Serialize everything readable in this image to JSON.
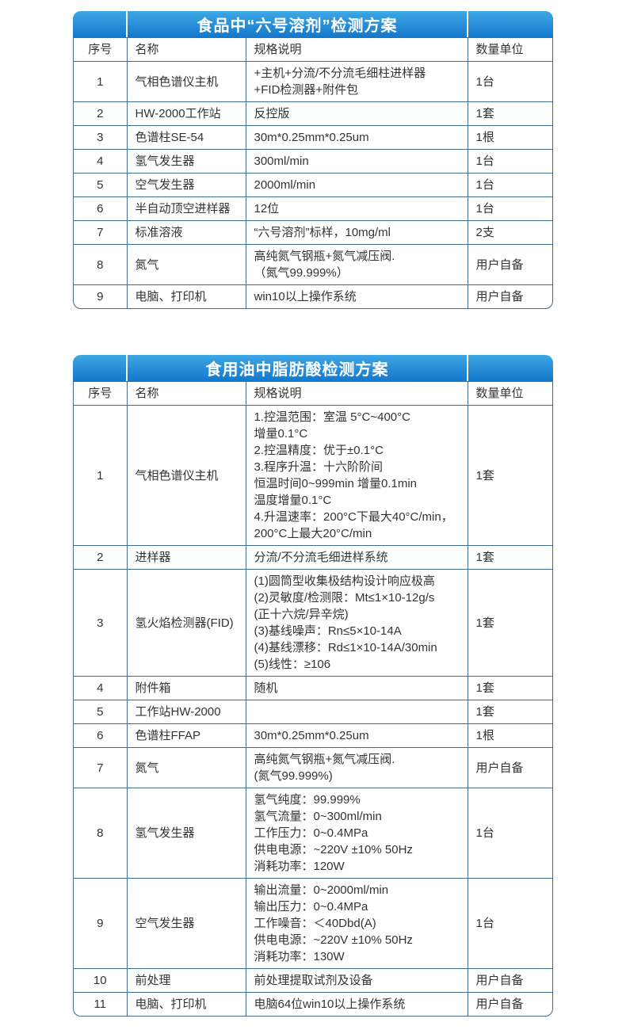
{
  "colors": {
    "header_gradient_top": "#3ea7e4",
    "header_gradient_bottom": "#1578cc",
    "table_border": "#3e6b8f",
    "body_text": "#333333",
    "title_text": "#ffffff",
    "page_background": "#ffffff"
  },
  "tables": [
    {
      "title": "食品中“六号溶剂”检测方案",
      "columns": [
        "序号",
        "名称",
        "规格说明",
        "数量单位"
      ],
      "rows": [
        {
          "no": "1",
          "name": "气相色谱仪主机",
          "spec": [
            "+主机+分流/不分流毛细柱进样器",
            "+FID检测器+附件包"
          ],
          "qty": "1台"
        },
        {
          "no": "2",
          "name": "HW-2000工作站",
          "spec": [
            "反控版"
          ],
          "qty": "1套"
        },
        {
          "no": "3",
          "name": "色谱柱SE-54",
          "spec": [
            "30m*0.25mm*0.25um"
          ],
          "qty": "1根"
        },
        {
          "no": "4",
          "name": "氢气发生器",
          "spec": [
            "300ml/min"
          ],
          "qty": "1台"
        },
        {
          "no": "5",
          "name": "空气发生器",
          "spec": [
            "2000ml/min"
          ],
          "qty": "1台"
        },
        {
          "no": "6",
          "name": "半自动顶空进样器",
          "spec": [
            "12位"
          ],
          "qty": "1台"
        },
        {
          "no": "7",
          "name": "标准溶液",
          "spec": [
            "“六号溶剂”标样，10mg/ml"
          ],
          "qty": "2支"
        },
        {
          "no": "8",
          "name": "氮气",
          "spec": [
            "高纯氮气钢瓶+氮气减压阀.",
            "（氮气99.999%）"
          ],
          "qty": "用户自备"
        },
        {
          "no": "9",
          "name": "电脑、打印机",
          "spec": [
            "win10以上操作系统"
          ],
          "qty": "用户自备"
        }
      ]
    },
    {
      "title": "食用油中脂肪酸检测方案",
      "columns": [
        "序号",
        "名称",
        "规格说明",
        "数量单位"
      ],
      "rows": [
        {
          "no": "1",
          "name": "气相色谱仪主机",
          "spec": [
            "1.控温范围：室温 5°C~400°C",
            "增量0.1°C",
            "2.控温精度：优于±0.1°C",
            "3.程序升温：十六阶阶间",
            "恒温时间0~999min 增量0.1min",
            "温度增量0.1°C",
            "4.升温速率：200°C下最大40°C/min，",
            "200°C上最大20°C/min"
          ],
          "qty": "1套"
        },
        {
          "no": "2",
          "name": "进样器",
          "spec": [
            "分流/不分流毛细进样系统"
          ],
          "qty": "1套"
        },
        {
          "no": "3",
          "name": "氢火焰检测器(FID)",
          "spec": [
            "(1)圆筒型收集极结构设计响应极高",
            "(2)灵敏度/检测限：Mt≤1×10-12g/s",
            "(正十六烷/异辛烷)",
            "(3)基线噪声：Rn≤5×10-14A",
            "(4)基线漂移：Rd≤1×10-14A/30min",
            "(5)线性：≥106"
          ],
          "qty": "1套"
        },
        {
          "no": "4",
          "name": "附件箱",
          "spec": [
            "随机"
          ],
          "qty": "1套"
        },
        {
          "no": "5",
          "name": "工作站HW-2000",
          "spec": [],
          "qty": "1套"
        },
        {
          "no": "6",
          "name": "色谱柱FFAP",
          "spec": [
            "30m*0.25mm*0.25um"
          ],
          "qty": "1根"
        },
        {
          "no": "7",
          "name": "氮气",
          "spec": [
            "高纯氮气钢瓶+氮气减压阀.",
            "(氮气99.999%)"
          ],
          "qty": "用户自备"
        },
        {
          "no": "8",
          "name": "氢气发生器",
          "spec": [
            "氢气纯度：99.999%",
            "氢气流量：0~300ml/min",
            "工作压力：0~0.4MPa",
            "供电电源：~220V ±10% 50Hz",
            "消耗功率：120W"
          ],
          "qty": "1台"
        },
        {
          "no": "9",
          "name": "空气发生器",
          "spec": [
            "输出流量：0~2000ml/min",
            "输出压力：0~0.4MPa",
            "工作噪音：＜40Dbd(A)",
            "供电电源：~220V ±10% 50Hz",
            "消耗功率：130W"
          ],
          "qty": "1台"
        },
        {
          "no": "10",
          "name": "前处理",
          "spec": [
            "前处理提取试剂及设备"
          ],
          "qty": "用户自备"
        },
        {
          "no": "11",
          "name": "电脑、打印机",
          "spec": [
            "电脑64位win10以上操作系统"
          ],
          "qty": "用户自备"
        }
      ]
    }
  ]
}
